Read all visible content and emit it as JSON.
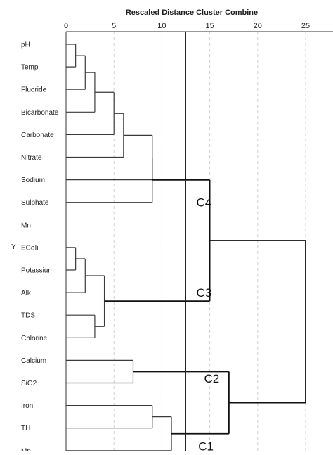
{
  "chart_data": {
    "type": "dendrogram",
    "title": "Rescaled Distance Cluster Combine",
    "axis_name": "Y",
    "xlim": [
      0,
      25
    ],
    "ticks": [
      0,
      5,
      10,
      15,
      20,
      25
    ],
    "grid": true,
    "cut_distance": 12.5,
    "leaves": [
      "pH",
      "Temp",
      "Fluoride",
      "Bicarbonate",
      "Carbonate",
      "Nitrate",
      "Sodium",
      "Sulphate",
      "Mn",
      "ECoIi",
      "Potassium",
      "Alk",
      "TDS",
      "Chlorine",
      "Calcium",
      "SiO2",
      "Iron",
      "TH",
      "Mn"
    ],
    "merges": [
      {
        "id": "n1",
        "a": "L0",
        "b": "L1",
        "height": 1.0
      },
      {
        "id": "n2",
        "a": "n1",
        "b": "L2",
        "height": 2.0
      },
      {
        "id": "n3",
        "a": "n2",
        "b": "L3",
        "height": 3.0
      },
      {
        "id": "n4",
        "a": "n3",
        "b": "L4",
        "height": 5.0
      },
      {
        "id": "n5",
        "a": "n4",
        "b": "L5",
        "height": 6.0
      },
      {
        "id": "n6",
        "a": "n5",
        "b": "L6",
        "height": 9.0
      },
      {
        "id": "n7",
        "a": "n6",
        "b": "L7",
        "height": 9.0
      },
      {
        "id": "m1",
        "a": "L9",
        "b": "L10",
        "height": 1.0
      },
      {
        "id": "m2",
        "a": "m1",
        "b": "L11",
        "height": 2.0
      },
      {
        "id": "m3",
        "a": "L12",
        "b": "L13",
        "height": 3.0
      },
      {
        "id": "m4",
        "a": "m2",
        "b": "m3",
        "height": 4.0
      },
      {
        "id": "c12",
        "a": "n7",
        "b": "m4",
        "height": 15.0,
        "thick": true
      },
      {
        "id": "k1",
        "a": "L14",
        "b": "L15",
        "height": 7.0
      },
      {
        "id": "q1",
        "a": "L16",
        "b": "L17",
        "height": 9.0
      },
      {
        "id": "q2",
        "a": "q1",
        "b": "L18",
        "height": 11.0
      },
      {
        "id": "c34",
        "a": "k1",
        "b": "q2",
        "height": 17.0,
        "thick": true
      },
      {
        "id": "root",
        "a": "c12",
        "b": "c34",
        "height": 25.0,
        "thick": true
      }
    ],
    "cluster_labels": [
      {
        "text": "C4",
        "distance": 14.4,
        "leaf": 7.0
      },
      {
        "text": "C3",
        "distance": 14.4,
        "leaf": 11.0
      },
      {
        "text": "C2",
        "distance": 15.2,
        "leaf": 14.8
      },
      {
        "text": "C1",
        "distance": 14.6,
        "leaf": 17.8
      }
    ]
  }
}
